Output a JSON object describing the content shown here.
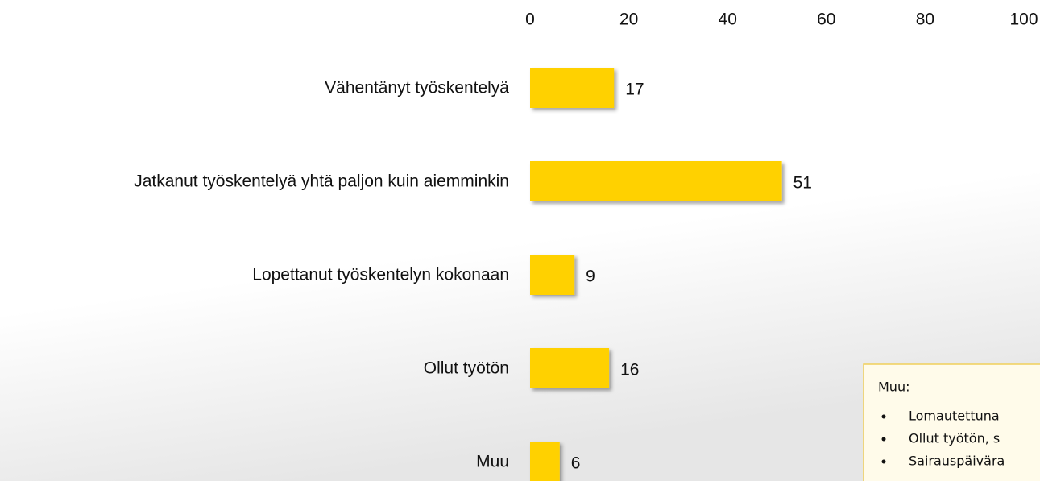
{
  "chart_data": {
    "type": "bar",
    "orientation": "horizontal",
    "categories": [
      "Vähentänyt työskentelyä",
      "Jatkanut työskentelyä yhtä paljon kuin aiemminkin",
      "Lopettanut työskentelyn kokonaan",
      "Ollut työtön",
      "Muu"
    ],
    "values": [
      17,
      51,
      9,
      16,
      6
    ],
    "color": "#ffd100",
    "xlim": [
      0,
      100
    ],
    "xticks": [
      0,
      20,
      40,
      60,
      80,
      100
    ],
    "grid": false,
    "note": {
      "title": "Muu:",
      "items": [
        "Lomautettuna",
        "Ollut työtön, s",
        "Sairauspäivära"
      ]
    }
  }
}
